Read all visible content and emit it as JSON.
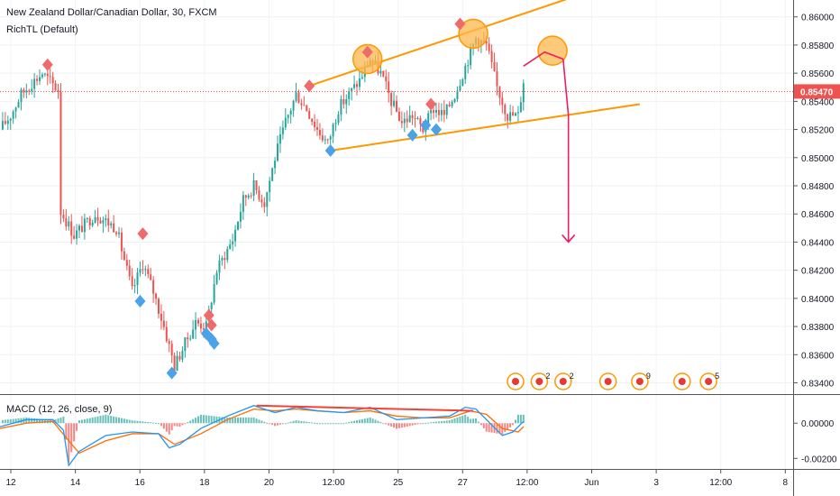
{
  "header": {
    "symbol_title": "New Zealand Dollar/Canadian Dollar, 30, FXCM",
    "indicator": "RichTL (Default)"
  },
  "macd_label": "MACD (12, 26, close, 9)",
  "chart_data": [
    {
      "type": "candlestick",
      "title": "New Zealand Dollar/Canadian Dollar, 30, FXCM",
      "price_axis": {
        "ticks": [
          "0.86000",
          "0.85800",
          "0.85600",
          "0.85400",
          "0.85200",
          "0.85000",
          "0.84800",
          "0.84600",
          "0.84400",
          "0.84200",
          "0.84000",
          "0.83800",
          "0.83600",
          "0.83400"
        ],
        "range": [
          0.8332,
          0.8612
        ],
        "current_price": "0.85470"
      },
      "time_axis": {
        "ticks": [
          "12",
          "14",
          "16",
          "18",
          "20",
          "12:00",
          "25",
          "27",
          "12:00",
          "Jun",
          "3",
          "12:00",
          "8"
        ],
        "data_index_range": [
          0,
          300
        ]
      },
      "price_path": [
        [
          0,
          0.852
        ],
        [
          4,
          0.853
        ],
        [
          8,
          0.8545
        ],
        [
          12,
          0.8553
        ],
        [
          16,
          0.856
        ],
        [
          20,
          0.8552
        ],
        [
          22,
          0.8548
        ],
        [
          23,
          0.8462
        ],
        [
          28,
          0.8445
        ],
        [
          36,
          0.846
        ],
        [
          44,
          0.845
        ],
        [
          50,
          0.8405
        ],
        [
          54,
          0.8425
        ],
        [
          58,
          0.8405
        ],
        [
          62,
          0.838
        ],
        [
          66,
          0.8352
        ],
        [
          70,
          0.8368
        ],
        [
          74,
          0.8383
        ],
        [
          78,
          0.838
        ],
        [
          82,
          0.842
        ],
        [
          88,
          0.8442
        ],
        [
          92,
          0.847
        ],
        [
          96,
          0.848
        ],
        [
          100,
          0.8468
        ],
        [
          104,
          0.85
        ],
        [
          108,
          0.8525
        ],
        [
          112,
          0.8545
        ],
        [
          116,
          0.8535
        ],
        [
          120,
          0.852
        ],
        [
          124,
          0.851
        ],
        [
          128,
          0.8535
        ],
        [
          132,
          0.8545
        ],
        [
          136,
          0.8555
        ],
        [
          140,
          0.857
        ],
        [
          144,
          0.856
        ],
        [
          148,
          0.854
        ],
        [
          152,
          0.8525
        ],
        [
          156,
          0.853
        ],
        [
          160,
          0.852
        ],
        [
          164,
          0.8535
        ],
        [
          168,
          0.853
        ],
        [
          172,
          0.8545
        ],
        [
          176,
          0.8565
        ],
        [
          180,
          0.8585
        ],
        [
          184,
          0.858
        ],
        [
          188,
          0.855
        ],
        [
          192,
          0.853
        ],
        [
          196,
          0.853
        ],
        [
          198,
          0.8555
        ]
      ],
      "markers": {
        "sell": [
          [
            18,
            0.8566
          ],
          [
            54,
            0.8446
          ],
          [
            79,
            0.8388
          ],
          [
            80,
            0.8381
          ],
          [
            117,
            0.8551
          ],
          [
            139,
            0.8575
          ],
          [
            163,
            0.8538
          ],
          [
            174,
            0.8595
          ]
        ],
        "buy": [
          [
            53,
            0.8398
          ],
          [
            65,
            0.8347
          ],
          [
            78,
            0.8375
          ],
          [
            80,
            0.8371
          ],
          [
            81,
            0.8368
          ],
          [
            125,
            0.8505
          ],
          [
            156,
            0.8516
          ],
          [
            161,
            0.8523
          ],
          [
            165,
            0.852
          ]
        ]
      },
      "annotations": {
        "channel_upper": [
          [
            117,
            0.8551
          ],
          [
            215,
            0.8613
          ]
        ],
        "channel_lower": [
          [
            125,
            0.8505
          ],
          [
            242,
            0.8538
          ]
        ],
        "circles": [
          [
            139,
            0.857
          ],
          [
            179,
            0.8588
          ],
          [
            209,
            0.8576
          ]
        ],
        "projection_curve": [
          [
            198,
            0.8565
          ],
          [
            206,
            0.8575
          ],
          [
            213,
            0.857
          ],
          [
            215,
            0.853
          ],
          [
            215,
            0.844
          ]
        ],
        "event_icons": [
          {
            "x_index": 195,
            "label": ""
          },
          {
            "x_index": 204,
            "label": "2"
          },
          {
            "x_index": 213,
            "label": "2"
          },
          {
            "x_index": 230,
            "label": ""
          },
          {
            "x_index": 242,
            "label": "9"
          },
          {
            "x_index": 258,
            "label": ""
          },
          {
            "x_index": 268,
            "label": "5"
          }
        ]
      },
      "colors": {
        "up": "#26a69a",
        "down": "#ef5350",
        "sell_marker": "#ef6a6a",
        "buy_marker": "#4aa3e8",
        "channel": "#ff9800",
        "circle_fill": "#ffb74d",
        "projection": "#e91e63",
        "current_price_badge": "#ef5350"
      }
    },
    {
      "type": "macd",
      "title": "MACD (12, 26, close, 9)",
      "axis_ticks": [
        "0.00000",
        "-0.00200"
      ],
      "y_range": [
        -0.0026,
        0.0016
      ],
      "macd_line": [
        [
          0,
          -0.0002
        ],
        [
          10,
          0.0002
        ],
        [
          20,
          0.0002
        ],
        [
          24,
          -0.0004
        ],
        [
          26,
          -0.0024
        ],
        [
          30,
          -0.0016
        ],
        [
          40,
          -0.0007
        ],
        [
          50,
          -0.0005
        ],
        [
          60,
          -0.0006
        ],
        [
          64,
          -0.0014
        ],
        [
          68,
          -0.0012
        ],
        [
          76,
          -0.0003
        ],
        [
          86,
          0.0004
        ],
        [
          96,
          0.001
        ],
        [
          104,
          0.0006
        ],
        [
          112,
          0.0009
        ],
        [
          120,
          0.0007
        ],
        [
          130,
          0.0006
        ],
        [
          140,
          0.0009
        ],
        [
          150,
          0.0002
        ],
        [
          160,
          0.0003
        ],
        [
          170,
          0.0004
        ],
        [
          176,
          0.0009
        ],
        [
          180,
          0.0008
        ],
        [
          186,
          -0.0001
        ],
        [
          190,
          -0.0007
        ],
        [
          194,
          -0.0005
        ],
        [
          198,
          0.0001
        ]
      ],
      "signal_line": [
        [
          0,
          -0.0003
        ],
        [
          10,
          0.0
        ],
        [
          20,
          0.0001
        ],
        [
          26,
          -0.001
        ],
        [
          30,
          -0.0017
        ],
        [
          40,
          -0.001
        ],
        [
          50,
          -0.0006
        ],
        [
          60,
          -0.0006
        ],
        [
          66,
          -0.0012
        ],
        [
          76,
          -0.0006
        ],
        [
          86,
          0.0002
        ],
        [
          96,
          0.0008
        ],
        [
          104,
          0.0007
        ],
        [
          112,
          0.0008
        ],
        [
          120,
          0.0007
        ],
        [
          130,
          0.0006
        ],
        [
          140,
          0.0007
        ],
        [
          150,
          0.0004
        ],
        [
          160,
          0.0003
        ],
        [
          170,
          0.0003
        ],
        [
          178,
          0.0007
        ],
        [
          184,
          0.0005
        ],
        [
          190,
          -0.0003
        ],
        [
          196,
          -0.0005
        ],
        [
          198,
          -0.0002
        ]
      ],
      "divergence_line": [
        [
          97,
          0.001
        ],
        [
          179,
          0.0007
        ]
      ],
      "colors": {
        "macd": "#2196f3",
        "signal": "#ff6d00",
        "hist_up": "#26a69a",
        "hist_down": "#ef5350",
        "divergence": "#f44336"
      }
    }
  ]
}
